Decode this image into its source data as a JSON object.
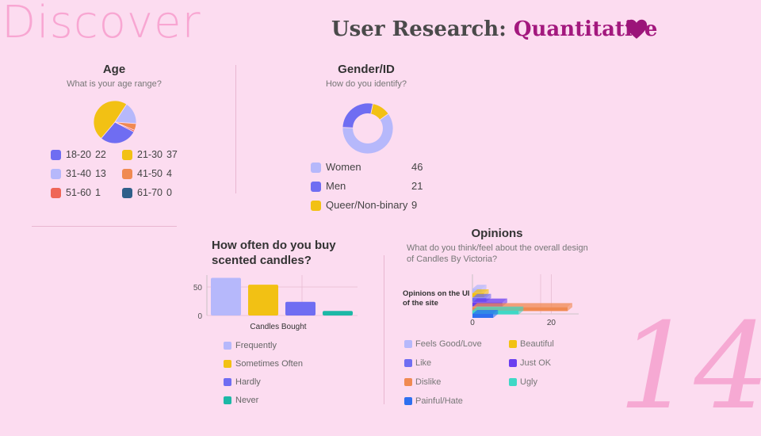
{
  "brand": "Discover",
  "header": {
    "prefix": "User Research:",
    "accent": "Quantitative"
  },
  "page_number": "14",
  "colors": {
    "background": "#fcdcf0",
    "accent": "#a3187e",
    "heart": "#9b1479"
  },
  "chart_data": [
    {
      "type": "pie",
      "title": "Age",
      "subtitle": "What is your age range?",
      "categories": [
        "18-20",
        "21-30",
        "31-40",
        "41-50",
        "51-60",
        "61-70"
      ],
      "values": [
        22,
        37,
        13,
        4,
        1,
        0
      ],
      "colors": [
        "#6f6df2",
        "#f2c114",
        "#b6b8fb",
        "#f08a52",
        "#ef6657",
        "#2f5f8a"
      ]
    },
    {
      "type": "pie",
      "title": "Gender/ID",
      "subtitle": "How do you identify?",
      "categories": [
        "Women",
        "Men",
        "Queer/Non-binary"
      ],
      "values": [
        46,
        21,
        9
      ],
      "colors": [
        "#b6b8fb",
        "#6f6df2",
        "#f2c114"
      ]
    },
    {
      "type": "bar",
      "title": "How often do you buy scented candles?",
      "xlabel": "Candles Bought",
      "y_ticks": [
        "50",
        "0"
      ],
      "ylim": [
        0,
        70
      ],
      "grid": true,
      "categories": [
        "Frequently",
        "Sometimes Often",
        "Hardly",
        "Never"
      ],
      "values": [
        66,
        54,
        24,
        8
      ],
      "colors": [
        "#b6b8fb",
        "#f2c114",
        "#6f6df2",
        "#1cb8a6"
      ]
    },
    {
      "type": "bar",
      "orientation": "horizontal",
      "title": "Opinions",
      "subtitle": "What do you think/feel about the overall design of Candles By Victoria?",
      "ylabel": "Opinions on the UI of the site",
      "x_ticks": [
        "0",
        "20"
      ],
      "xlim": [
        0,
        35
      ],
      "categories": [
        "Feels Good/Love",
        "Beautiful",
        "Like",
        "Just OK",
        "Dislike",
        "Ugly",
        "Painful/Hate"
      ],
      "values": [
        4,
        5,
        6,
        13,
        35,
        20,
        9
      ],
      "colors": [
        "#b6b8fb",
        "#f2c114",
        "#6f6df2",
        "#6a3ff0",
        "#f08a52",
        "#3fd8c6",
        "#2e6ff0"
      ]
    }
  ]
}
